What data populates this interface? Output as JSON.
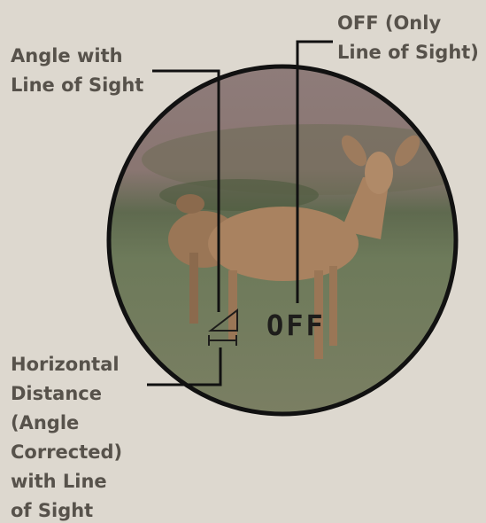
{
  "callouts": [
    {
      "lines": [
        "Angle with",
        "Line of Sight"
      ]
    },
    {
      "lines": [
        "OFF (Only",
        "Line of Sight)"
      ]
    },
    {
      "lines": [
        "Horizontal",
        "Distance",
        "(Angle",
        "Corrected)",
        "with Line",
        "of Sight"
      ]
    }
  ],
  "display": {
    "mode": "OFF"
  }
}
